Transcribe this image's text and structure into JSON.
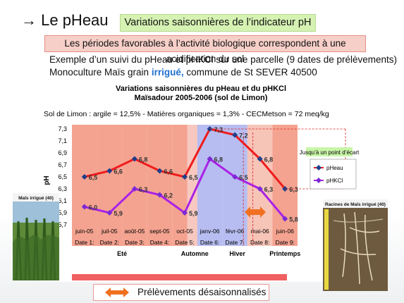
{
  "slide": {
    "title": "→ Le pHeau",
    "subtitle": "Variations saisonnières de l’indicateur pH",
    "intro": "Les périodes favorables à l’activité biologique correspondent à une acidification du sol",
    "example_line": "Exemple d’un suivi du pHeau et pHKCl sur une parcelle (9 dates de prélèvements)",
    "monoculture_prefix": "Monoculture Maïs grain ",
    "monoculture_highlight": "irrigué,",
    "monoculture_suffix": "  commune de St SEVER 40500",
    "photo_left_caption": "Maïs irrigué (40)",
    "photo_right_caption": "Racines de Maïs irrigué (40)",
    "bottom_label": "Prélèvements désaisonnalisés",
    "colors": {
      "pheau": "#ee1c1c",
      "phkcl": "#aa22e6",
      "marker": "#1f3f8c",
      "arrow": "#f07020"
    }
  },
  "chart_data": {
    "type": "line",
    "title": "Variations saisonnières du pHeau et du pHKCl",
    "subtitle": "Maïsadour 2005-2006 (sol de Limon)",
    "soil_info": "Sol de Limon : argile = 12,5% - Matières organiques = 1,3% - CECMetson = 72 meq/kg",
    "ylabel": "pH",
    "ylim": [
      5.7,
      7.3
    ],
    "yticks": [
      "7,3",
      "7,1",
      "6,9",
      "6,7",
      "6,5",
      "6,3",
      "6,1",
      "5,9",
      "5,7"
    ],
    "categories": [
      "juin-05",
      "juil-05",
      "août-05",
      "sept-05",
      "oct-05",
      "janv-06",
      "févr-06",
      "mai-06",
      "juin-06"
    ],
    "date_labels": [
      "Date 1:",
      "Date 2:",
      "Date 3:",
      "Date 4:",
      "Date 5:",
      "Date 6:",
      "Date 7:",
      "Date 8:",
      "Date 9:"
    ],
    "seasons": [
      "Eté",
      "Automne",
      "Hiver",
      "Printemps"
    ],
    "series": [
      {
        "name": "pHeau",
        "values": [
          6.5,
          6.6,
          6.8,
          6.6,
          6.5,
          7.3,
          7.2,
          6.8,
          6.3
        ],
        "labels": [
          "6,5",
          "6,6",
          "6,8",
          "6,6",
          "6,5",
          "7,3",
          "7,2",
          "6,8",
          "6,3"
        ]
      },
      {
        "name": "pHKCl",
        "values": [
          6.0,
          5.9,
          6.3,
          6.2,
          5.9,
          6.8,
          6.5,
          6.3,
          5.8
        ],
        "labels": [
          "6,0",
          "5,9",
          "6,3",
          "6,2",
          "5,9",
          "6,8",
          "6,5",
          "6,3",
          "5,8"
        ]
      }
    ],
    "annotation": "Jusqu’à un point d’écart",
    "legend_position": "right",
    "grid": false
  }
}
